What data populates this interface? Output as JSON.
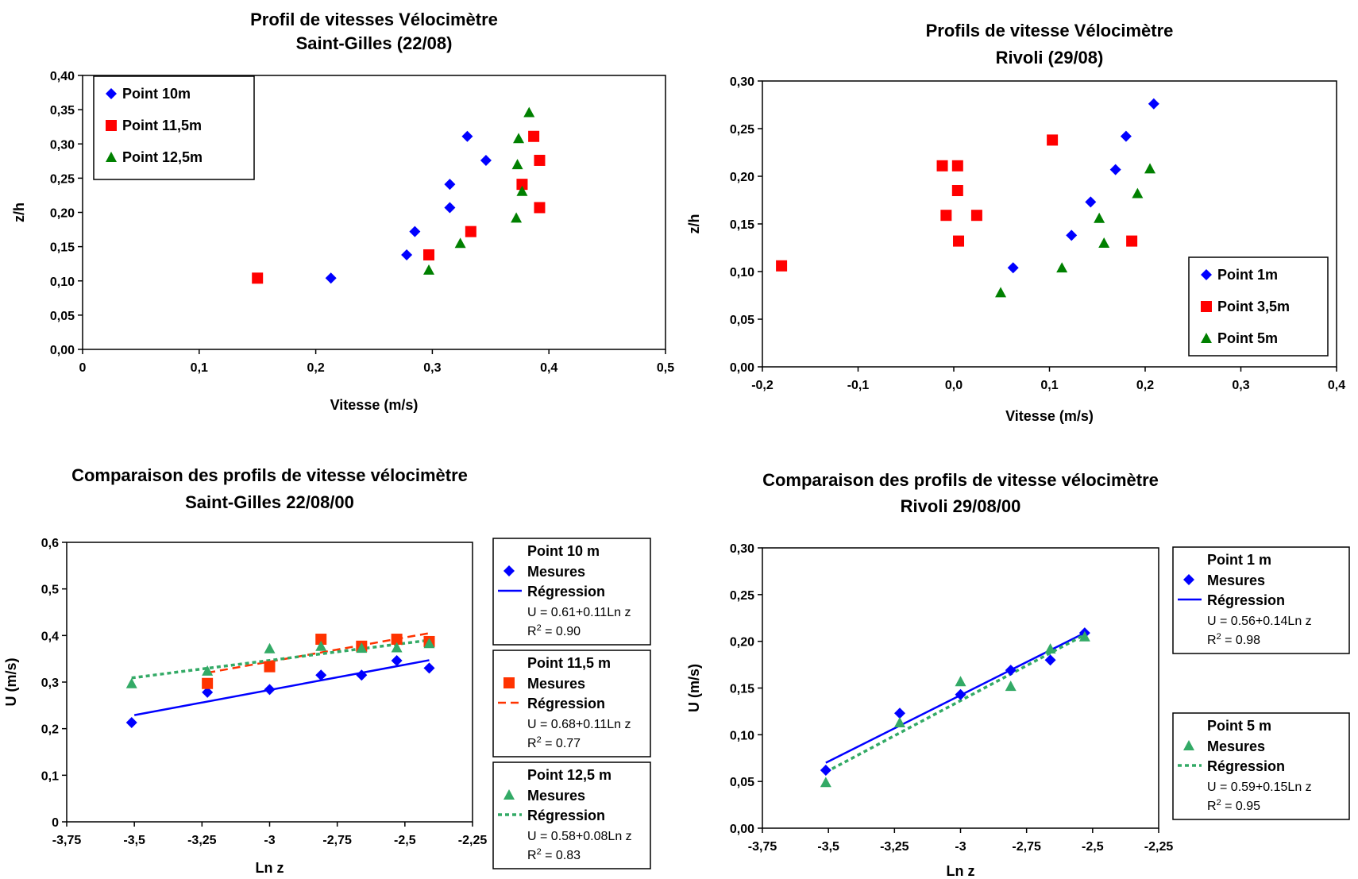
{
  "chart_data": [
    {
      "type": "scatter",
      "title": "Profil de vitesses Vélocimètre",
      "subtitle": "Saint-Gilles (22/08)",
      "xlabel": "Vitesse (m/s)",
      "ylabel": "z/h",
      "xlim": [
        0,
        0.5
      ],
      "ylim": [
        0,
        0.4
      ],
      "x_ticks": [
        "0",
        "0,1",
        "0,2",
        "0,3",
        "0,4",
        "0,5"
      ],
      "y_ticks": [
        "0,00",
        "0,05",
        "0,10",
        "0,15",
        "0,20",
        "0,25",
        "0,30",
        "0,35",
        "0,40"
      ],
      "legend_position": "top-left",
      "series": [
        {
          "name": "Point 10m",
          "marker": "diamond",
          "color": "#0000ff",
          "points": [
            [
              0.213,
              0.104
            ],
            [
              0.278,
              0.138
            ],
            [
              0.285,
              0.172
            ],
            [
              0.315,
              0.207
            ],
            [
              0.315,
              0.241
            ],
            [
              0.33,
              0.311
            ],
            [
              0.346,
              0.276
            ]
          ]
        },
        {
          "name": "Point 11,5m",
          "marker": "square",
          "color": "#ff0000",
          "points": [
            [
              0.15,
              0.104
            ],
            [
              0.297,
              0.138
            ],
            [
              0.333,
              0.172
            ],
            [
              0.392,
              0.207
            ],
            [
              0.377,
              0.241
            ],
            [
              0.392,
              0.276
            ],
            [
              0.387,
              0.311
            ]
          ]
        },
        {
          "name": "Point 12,5m",
          "marker": "triangle",
          "color": "#008000",
          "points": [
            [
              0.297,
              0.116
            ],
            [
              0.324,
              0.155
            ],
            [
              0.372,
              0.192
            ],
            [
              0.377,
              0.231
            ],
            [
              0.373,
              0.27
            ],
            [
              0.374,
              0.308
            ],
            [
              0.383,
              0.346
            ]
          ]
        }
      ]
    },
    {
      "type": "scatter",
      "title": "Profils de vitesse Vélocimètre",
      "subtitle": "Rivoli (29/08)",
      "xlabel": "Vitesse (m/s)",
      "ylabel": "z/h",
      "xlim": [
        -0.2,
        0.4
      ],
      "ylim": [
        0,
        0.3
      ],
      "x_ticks": [
        "-0,2",
        "-0,1",
        "0,0",
        "0,1",
        "0,2",
        "0,3",
        "0,4"
      ],
      "y_ticks": [
        "0,00",
        "0,05",
        "0,10",
        "0,15",
        "0,20",
        "0,25",
        "0,30"
      ],
      "legend_position": "bottom-right",
      "series": [
        {
          "name": "Point 1m",
          "marker": "diamond",
          "color": "#0000ff",
          "points": [
            [
              0.062,
              0.104
            ],
            [
              0.123,
              0.138
            ],
            [
              0.143,
              0.173
            ],
            [
              0.169,
              0.207
            ],
            [
              0.18,
              0.242
            ],
            [
              0.209,
              0.276
            ]
          ]
        },
        {
          "name": "Point 3,5m",
          "marker": "square",
          "color": "#ff0000",
          "points": [
            [
              -0.18,
              0.106
            ],
            [
              0.005,
              0.132
            ],
            [
              0.186,
              0.132
            ],
            [
              -0.008,
              0.159
            ],
            [
              0.024,
              0.159
            ],
            [
              0.004,
              0.185
            ],
            [
              -0.012,
              0.211
            ],
            [
              0.004,
              0.211
            ],
            [
              0.103,
              0.238
            ]
          ]
        },
        {
          "name": "Point 5m",
          "marker": "triangle",
          "color": "#008000",
          "points": [
            [
              0.049,
              0.078
            ],
            [
              0.113,
              0.104
            ],
            [
              0.157,
              0.13
            ],
            [
              0.152,
              0.156
            ],
            [
              0.192,
              0.182
            ],
            [
              0.205,
              0.208
            ]
          ]
        }
      ]
    },
    {
      "type": "scatter",
      "title": "Comparaison des profils de vitesse vélocimètre",
      "subtitle": "Saint-Gilles 22/08/00",
      "xlabel": "Ln z",
      "ylabel": "U (m/s)",
      "xlim": [
        -3.75,
        -2.25
      ],
      "ylim": [
        0,
        0.6
      ],
      "x_ticks": [
        "-3,75",
        "-3,5",
        "-3,25",
        "-3",
        "-2,75",
        "-2,5",
        "-2,25"
      ],
      "y_ticks": [
        "0",
        "0,1",
        "0,2",
        "0,3",
        "0,4",
        "0,5",
        "0,6"
      ],
      "legend_position": "right",
      "series": [
        {
          "name": "Point 10 m",
          "marker": "diamond",
          "color": "#0000ff",
          "measures_label": "Mesures",
          "regression_label": "Régression",
          "equation": "U = 0.61+0.11Ln z",
          "r2_value": " = 0.90",
          "regression_line": [
            [
              -3.5,
              0.229
            ],
            [
              -2.41,
              0.347
            ]
          ],
          "regression_style": "solid",
          "points": [
            [
              -3.51,
              0.213
            ],
            [
              -3.23,
              0.278
            ],
            [
              -3.0,
              0.284
            ],
            [
              -2.81,
              0.315
            ],
            [
              -2.66,
              0.315
            ],
            [
              -2.53,
              0.346
            ],
            [
              -2.41,
              0.33
            ]
          ]
        },
        {
          "name": "Point 11,5 m",
          "marker": "square",
          "color": "#ff3300",
          "measures_label": "Mesures",
          "regression_label": "Régression",
          "equation": "U = 0.68+0.11Ln z",
          "r2_value": " = 0.77",
          "regression_line": [
            [
              -3.23,
              0.32
            ],
            [
              -2.41,
              0.405
            ]
          ],
          "regression_style": "dashed",
          "points": [
            [
              -3.23,
              0.297
            ],
            [
              -3.0,
              0.333
            ],
            [
              -2.81,
              0.392
            ],
            [
              -2.66,
              0.377
            ],
            [
              -2.53,
              0.392
            ],
            [
              -2.41,
              0.387
            ]
          ]
        },
        {
          "name": "Point 12,5 m",
          "marker": "triangle",
          "color": "#33aa66",
          "measures_label": "Mesures",
          "regression_label": "Régression",
          "equation": "U = 0.58+0.08Ln z",
          "r2_value": " = 0.83",
          "regression_line": [
            [
              -3.51,
              0.309
            ],
            [
              -2.41,
              0.39
            ]
          ],
          "regression_style": "dotted",
          "points": [
            [
              -3.51,
              0.297
            ],
            [
              -3.23,
              0.324
            ],
            [
              -3.0,
              0.372
            ],
            [
              -2.81,
              0.377
            ],
            [
              -2.66,
              0.373
            ],
            [
              -2.53,
              0.374
            ],
            [
              -2.41,
              0.383
            ]
          ]
        }
      ]
    },
    {
      "type": "scatter",
      "title": "Comparaison des profils de vitesse vélocimètre",
      "subtitle": "Rivoli 29/08/00",
      "xlabel": "Ln z",
      "ylabel": "U (m/s)",
      "xlim": [
        -3.75,
        -2.25
      ],
      "ylim": [
        0,
        0.3
      ],
      "x_ticks": [
        "-3,75",
        "-3,5",
        "-3,25",
        "-3",
        "-2,75",
        "-2,5",
        "-2,25"
      ],
      "y_ticks": [
        "0,00",
        "0,05",
        "0,10",
        "0,15",
        "0,20",
        "0,25",
        "0,30"
      ],
      "legend_position": "right",
      "series": [
        {
          "name": "Point 1 m",
          "marker": "diamond",
          "color": "#0000ff",
          "measures_label": "Mesures",
          "regression_label": "Régression",
          "equation": "U = 0.56+0.14Ln z",
          "r2_value": " = 0.98",
          "regression_line": [
            [
              -3.51,
              0.07
            ],
            [
              -2.53,
              0.209
            ]
          ],
          "regression_style": "solid",
          "points": [
            [
              -3.51,
              0.062
            ],
            [
              -3.23,
              0.123
            ],
            [
              -3.0,
              0.143
            ],
            [
              -2.81,
              0.169
            ],
            [
              -2.66,
              0.18
            ],
            [
              -2.53,
              0.209
            ]
          ]
        },
        {
          "name": "Point 5 m",
          "marker": "triangle",
          "color": "#33aa66",
          "measures_label": "Mesures",
          "regression_label": "Régression",
          "equation": "U = 0.59+0.15Ln z",
          "r2_value": " = 0.95",
          "regression_line": [
            [
              -3.51,
              0.06
            ],
            [
              -2.53,
              0.207
            ]
          ],
          "regression_style": "dotted",
          "points": [
            [
              -3.51,
              0.049
            ],
            [
              -3.23,
              0.113
            ],
            [
              -3.0,
              0.157
            ],
            [
              -2.81,
              0.152
            ],
            [
              -2.66,
              0.192
            ],
            [
              -2.53,
              0.205
            ]
          ]
        }
      ]
    }
  ]
}
